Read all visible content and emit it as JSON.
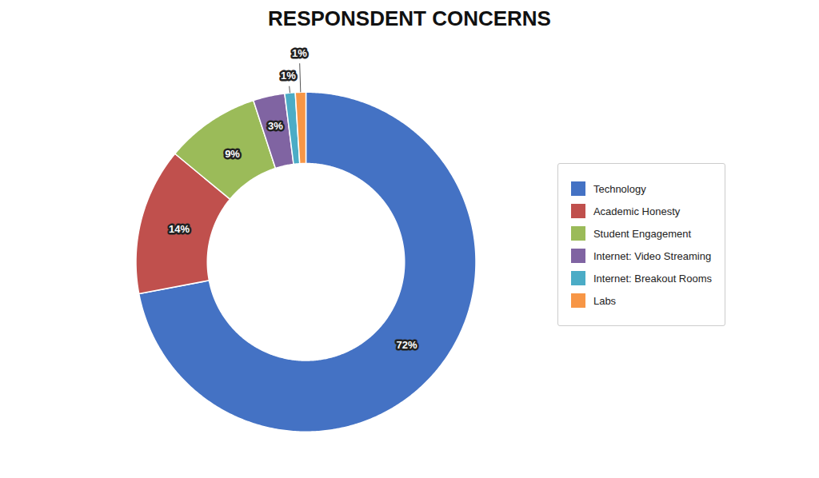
{
  "chart_data": {
    "type": "donut",
    "title": "RESPONSDENT CONCERNS",
    "categories": [
      "Technology",
      "Academic Honesty",
      "Student Engagement",
      "Internet: Video Streaming",
      "Internet: Breakout Rooms",
      "Labs"
    ],
    "values": [
      72,
      14,
      9,
      3,
      1,
      1
    ],
    "value_labels": [
      "72%",
      "14%",
      "9%",
      "3%",
      "1%",
      "1%"
    ],
    "colors": [
      "#4472C4",
      "#C0504D",
      "#9BBB59",
      "#8064A2",
      "#4BACC6",
      "#F79646"
    ],
    "data_labels": true,
    "legend": "right"
  }
}
